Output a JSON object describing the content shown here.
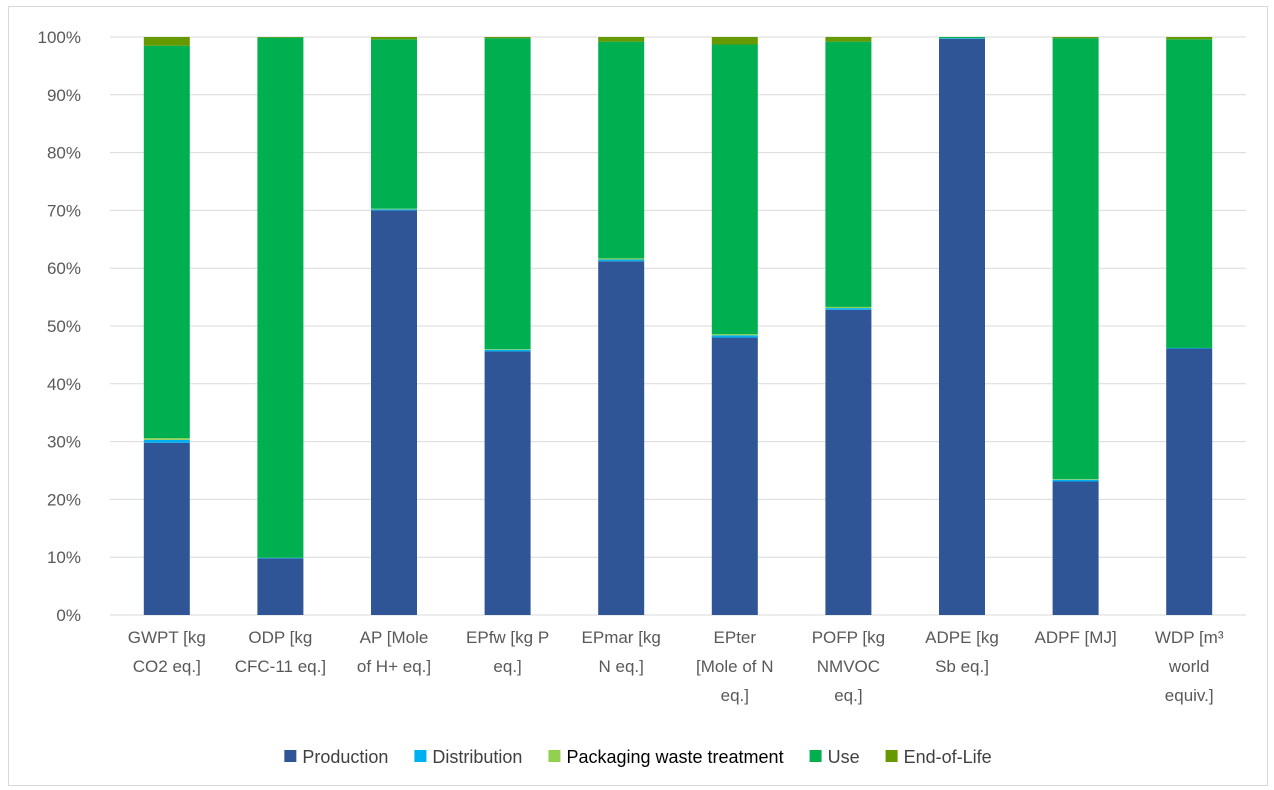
{
  "chart_data": {
    "type": "bar",
    "stacked": true,
    "percent": true,
    "categories": [
      [
        "GWPT [kg",
        "CO2 eq.]"
      ],
      [
        "ODP [kg",
        "CFC-11 eq.]"
      ],
      [
        "AP [Mole",
        "of H+ eq.]"
      ],
      [
        "EPfw [kg P",
        "eq.]"
      ],
      [
        "EPmar [kg",
        "N eq.]"
      ],
      [
        "EPter",
        "[Mole of N",
        "eq.]"
      ],
      [
        "POFP [kg",
        "NMVOC",
        "eq.]"
      ],
      [
        "ADPE [kg",
        "Sb eq.]"
      ],
      [
        "ADPF [MJ]"
      ],
      [
        "WDP [m³",
        "world",
        "equiv.]"
      ]
    ],
    "series": [
      {
        "name": "Production",
        "color": "#2F5597",
        "values": [
          29.8,
          9.8,
          70.0,
          45.6,
          61.2,
          48.0,
          52.8,
          99.7,
          23.1,
          46.1
        ]
      },
      {
        "name": "Distribution",
        "color": "#00B0F0",
        "values": [
          0.5,
          0.1,
          0.2,
          0.3,
          0.3,
          0.4,
          0.3,
          0.1,
          0.3,
          0.1
        ]
      },
      {
        "name": "Packaging waste treatment",
        "color": "#92D050",
        "values": [
          0.3,
          0.0,
          0.1,
          0.1,
          0.2,
          0.2,
          0.2,
          0.0,
          0.1,
          0.0
        ]
      },
      {
        "name": "Use",
        "color": "#00B050",
        "values": [
          67.9,
          90.0,
          29.3,
          53.8,
          37.5,
          50.1,
          45.9,
          0.2,
          76.3,
          53.4
        ]
      },
      {
        "name": "End-of-Life",
        "color": "#669900",
        "values": [
          1.5,
          0.1,
          0.4,
          0.2,
          0.8,
          1.3,
          0.8,
          0.0,
          0.2,
          0.4
        ]
      }
    ],
    "yticks": [
      "0%",
      "10%",
      "20%",
      "30%",
      "40%",
      "50%",
      "60%",
      "70%",
      "80%",
      "90%",
      "100%"
    ],
    "ylim": [
      0,
      100
    ],
    "grid": true,
    "legend": "bottom"
  }
}
